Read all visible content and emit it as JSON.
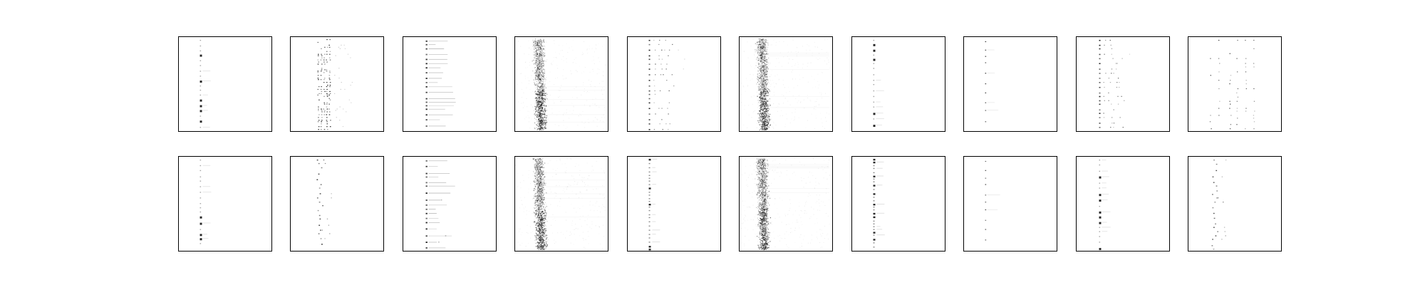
{
  "figure": {
    "background": "#ffffff",
    "frame_color": "#000000",
    "ink_color": "#000000",
    "rows": 2,
    "columns": 10,
    "axis_ticks_visible": false,
    "text_visible": false
  },
  "panels": [
    {
      "id": "r1c1",
      "pattern": "sparse-dot-column"
    },
    {
      "id": "r1c2",
      "pattern": "dense-multi-column"
    },
    {
      "id": "r1c3",
      "pattern": "dot-column-with-tails"
    },
    {
      "id": "r1c4",
      "pattern": "noise-band"
    },
    {
      "id": "r1c5",
      "pattern": "multi-dot-rows"
    },
    {
      "id": "r1c6",
      "pattern": "noise-band"
    },
    {
      "id": "r1c7",
      "pattern": "sparse-dot-column"
    },
    {
      "id": "r1c8",
      "pattern": "very-sparse-column"
    },
    {
      "id": "r1c9",
      "pattern": "multi-dot-rows"
    },
    {
      "id": "r1c10",
      "pattern": "scattered-multi-column"
    },
    {
      "id": "r2c1",
      "pattern": "sparse-dot-column"
    },
    {
      "id": "r2c2",
      "pattern": "scattered-dots"
    },
    {
      "id": "r2c3",
      "pattern": "dot-column-with-tails"
    },
    {
      "id": "r2c4",
      "pattern": "noise-band"
    },
    {
      "id": "r2c5",
      "pattern": "dense-dot-column"
    },
    {
      "id": "r2c6",
      "pattern": "noise-band"
    },
    {
      "id": "r2c7",
      "pattern": "dense-dot-column"
    },
    {
      "id": "r2c8",
      "pattern": "very-sparse-column"
    },
    {
      "id": "r2c9",
      "pattern": "sparse-dot-column"
    },
    {
      "id": "r2c10",
      "pattern": "scattered-dots"
    }
  ]
}
